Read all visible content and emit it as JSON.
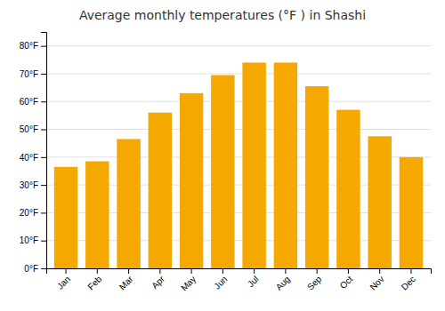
{
  "chart_data": {
    "type": "bar",
    "title": "Average monthly temperatures (°F ) in Shashi",
    "categories": [
      "Jan",
      "Feb",
      "Mar",
      "Apr",
      "May",
      "Jun",
      "Jul",
      "Aug",
      "Sep",
      "Oct",
      "Nov",
      "Dec"
    ],
    "values": [
      36.5,
      38.5,
      46.5,
      56.0,
      63.0,
      69.5,
      74.0,
      74.0,
      65.5,
      57.0,
      47.5,
      40.0
    ],
    "color": "#F5A800",
    "ylim": [
      0,
      85
    ],
    "yticks": [
      {
        "value": 0,
        "label": "0°F"
      },
      {
        "value": 10,
        "label": "10°F"
      },
      {
        "value": 20,
        "label": "20°F"
      },
      {
        "value": 30,
        "label": "30°F"
      },
      {
        "value": 40,
        "label": "40°F"
      },
      {
        "value": 50,
        "label": "50°F"
      },
      {
        "value": 60,
        "label": "60°F"
      },
      {
        "value": 70,
        "label": "70°F"
      },
      {
        "value": 80,
        "label": "80°F"
      }
    ],
    "grid": true
  }
}
